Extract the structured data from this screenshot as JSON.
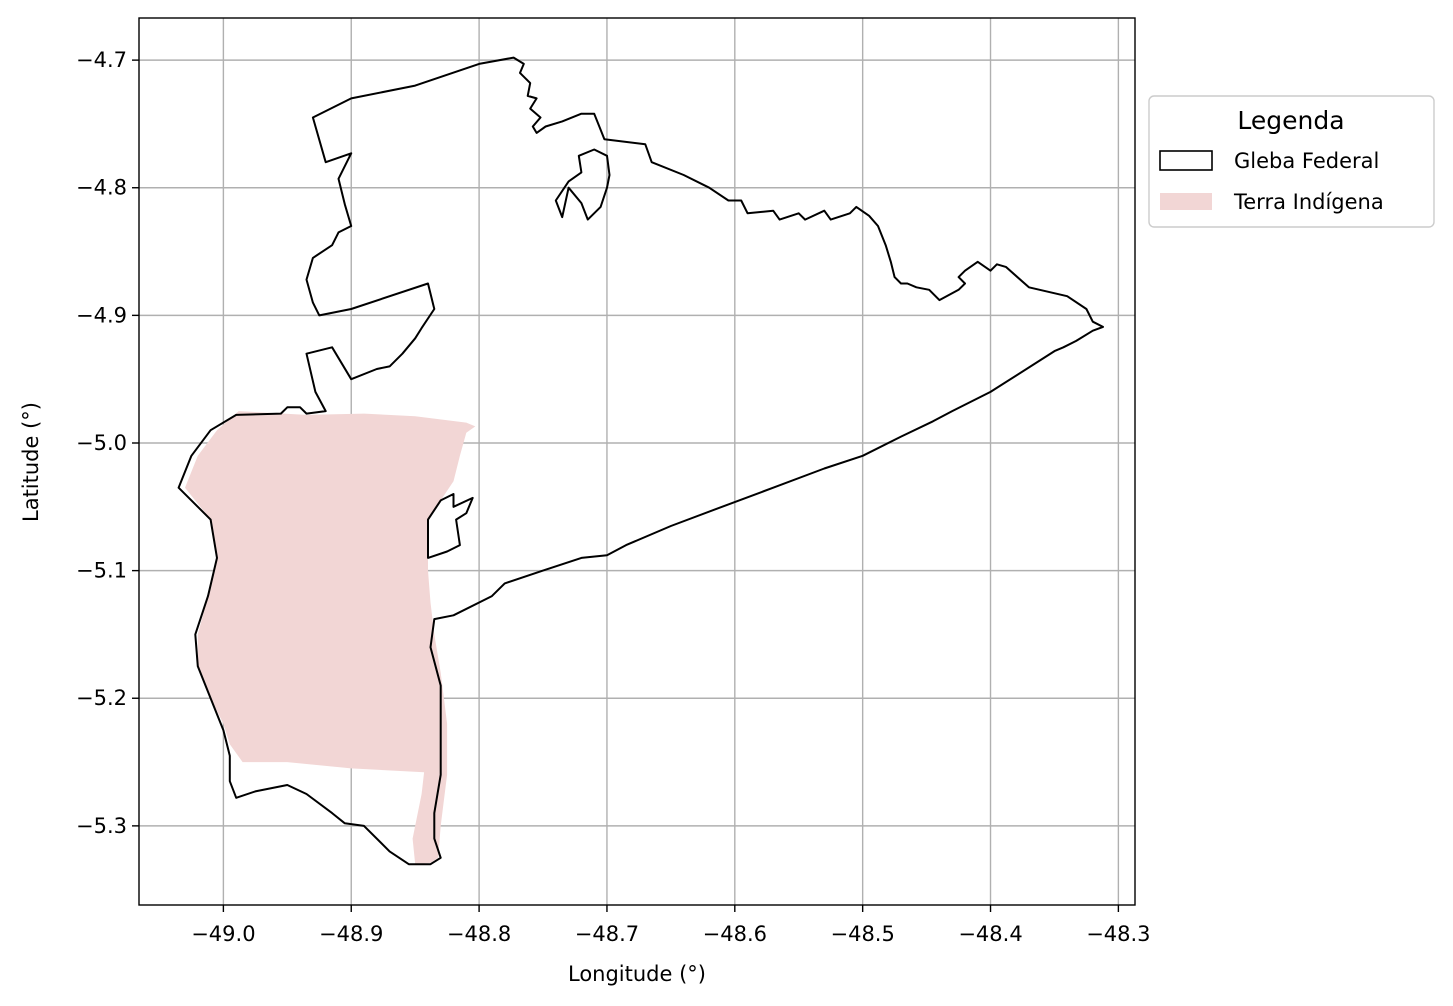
{
  "chart_data": {
    "type": "map",
    "xlabel": "Longitude (°)",
    "ylabel": "Latitude (°)",
    "xlim": [
      -49.066,
      -48.287
    ],
    "ylim": [
      -5.362,
      -4.667
    ],
    "xticks": [
      -49.0,
      -48.9,
      -48.8,
      -48.7,
      -48.6,
      -48.5,
      -48.4,
      -48.3
    ],
    "xtick_labels": [
      "−49.0",
      "−48.9",
      "−48.8",
      "−48.7",
      "−48.6",
      "−48.5",
      "−48.4",
      "−48.3"
    ],
    "yticks": [
      -4.7,
      -4.8,
      -4.9,
      -5.0,
      -5.1,
      -5.2,
      -5.3
    ],
    "ytick_labels": [
      "−4.7",
      "−4.8",
      "−4.9",
      "−5.0",
      "−5.1",
      "−5.2",
      "−5.3"
    ],
    "grid": true,
    "legend": {
      "title": "Legenda",
      "placement": "outside-right-top",
      "entries": [
        {
          "label": "Gleba Federal",
          "style": "outline",
          "color": "#000000"
        },
        {
          "label": "Terra Indígena",
          "style": "fill",
          "color": "#f2d6d5"
        }
      ]
    },
    "layers": [
      {
        "name": "Terra Indígena",
        "kind": "fill",
        "color": "#f2d6d5",
        "polygons": [
          [
            [
              -48.988,
              -4.975
            ],
            [
              -48.935,
              -4.978
            ],
            [
              -48.89,
              -4.977
            ],
            [
              -48.85,
              -4.979
            ],
            [
              -48.81,
              -4.984
            ],
            [
              -48.803,
              -4.987
            ],
            [
              -48.81,
              -4.992
            ],
            [
              -48.815,
              -5.01
            ],
            [
              -48.82,
              -5.03
            ],
            [
              -48.83,
              -5.045
            ],
            [
              -48.84,
              -5.06
            ],
            [
              -48.84,
              -5.08
            ],
            [
              -48.84,
              -5.1
            ],
            [
              -48.838,
              -5.125
            ],
            [
              -48.835,
              -5.15
            ],
            [
              -48.83,
              -5.18
            ],
            [
              -48.825,
              -5.22
            ],
            [
              -48.825,
              -5.26
            ],
            [
              -48.83,
              -5.3
            ],
            [
              -48.832,
              -5.325
            ],
            [
              -48.838,
              -5.329
            ],
            [
              -48.85,
              -5.33
            ],
            [
              -48.852,
              -5.31
            ],
            [
              -48.845,
              -5.275
            ],
            [
              -48.843,
              -5.258
            ],
            [
              -48.9,
              -5.255
            ],
            [
              -48.95,
              -5.25
            ],
            [
              -48.985,
              -5.25
            ],
            [
              -48.995,
              -5.236
            ],
            [
              -49.0,
              -5.22
            ],
            [
              -49.01,
              -5.2
            ],
            [
              -49.02,
              -5.175
            ],
            [
              -49.02,
              -5.15
            ],
            [
              -49.012,
              -5.12
            ],
            [
              -49.005,
              -5.09
            ],
            [
              -49.01,
              -5.06
            ],
            [
              -49.03,
              -5.035
            ],
            [
              -49.02,
              -5.01
            ],
            [
              -49.005,
              -4.99
            ]
          ]
        ]
      },
      {
        "name": "Gleba Federal",
        "kind": "outline",
        "color": "#000000",
        "polygons": [
          [
            [
              -48.773,
              -4.698
            ],
            [
              -48.765,
              -4.703
            ],
            [
              -48.768,
              -4.71
            ],
            [
              -48.76,
              -4.718
            ],
            [
              -48.762,
              -4.728
            ],
            [
              -48.755,
              -4.73
            ],
            [
              -48.76,
              -4.738
            ],
            [
              -48.752,
              -4.745
            ],
            [
              -48.758,
              -4.752
            ],
            [
              -48.755,
              -4.757
            ],
            [
              -48.748,
              -4.752
            ],
            [
              -48.735,
              -4.748
            ],
            [
              -48.72,
              -4.742
            ],
            [
              -48.71,
              -4.742
            ],
            [
              -48.702,
              -4.762
            ],
            [
              -48.67,
              -4.766
            ],
            [
              -48.665,
              -4.78
            ],
            [
              -48.64,
              -4.79
            ],
            [
              -48.62,
              -4.8
            ],
            [
              -48.605,
              -4.81
            ],
            [
              -48.595,
              -4.81
            ],
            [
              -48.59,
              -4.82
            ],
            [
              -48.57,
              -4.818
            ],
            [
              -48.565,
              -4.825
            ],
            [
              -48.55,
              -4.82
            ],
            [
              -48.545,
              -4.825
            ],
            [
              -48.53,
              -4.818
            ],
            [
              -48.525,
              -4.825
            ],
            [
              -48.51,
              -4.82
            ],
            [
              -48.505,
              -4.815
            ],
            [
              -48.495,
              -4.822
            ],
            [
              -48.488,
              -4.83
            ],
            [
              -48.482,
              -4.845
            ],
            [
              -48.478,
              -4.858
            ],
            [
              -48.475,
              -4.87
            ],
            [
              -48.47,
              -4.875
            ],
            [
              -48.465,
              -4.875
            ],
            [
              -48.458,
              -4.878
            ],
            [
              -48.448,
              -4.88
            ],
            [
              -48.44,
              -4.888
            ],
            [
              -48.425,
              -4.88
            ],
            [
              -48.42,
              -4.875
            ],
            [
              -48.425,
              -4.87
            ],
            [
              -48.42,
              -4.865
            ],
            [
              -48.41,
              -4.858
            ],
            [
              -48.4,
              -4.865
            ],
            [
              -48.395,
              -4.86
            ],
            [
              -48.388,
              -4.862
            ],
            [
              -48.37,
              -4.878
            ],
            [
              -48.34,
              -4.885
            ],
            [
              -48.325,
              -4.895
            ],
            [
              -48.32,
              -4.905
            ],
            [
              -48.312,
              -4.909
            ],
            [
              -48.32,
              -4.912
            ],
            [
              -48.333,
              -4.92
            ],
            [
              -48.343,
              -4.925
            ],
            [
              -48.35,
              -4.928
            ],
            [
              -48.4,
              -4.96
            ],
            [
              -48.43,
              -4.975
            ],
            [
              -48.445,
              -4.983
            ],
            [
              -48.47,
              -4.995
            ],
            [
              -48.5,
              -5.01
            ],
            [
              -48.53,
              -5.02
            ],
            [
              -48.57,
              -5.035
            ],
            [
              -48.61,
              -5.05
            ],
            [
              -48.65,
              -5.065
            ],
            [
              -48.685,
              -5.08
            ],
            [
              -48.7,
              -5.088
            ],
            [
              -48.72,
              -5.09
            ],
            [
              -48.75,
              -5.1
            ],
            [
              -48.78,
              -5.11
            ],
            [
              -48.79,
              -5.12
            ],
            [
              -48.82,
              -5.135
            ],
            [
              -48.835,
              -5.138
            ],
            [
              -48.838,
              -5.16
            ],
            [
              -48.83,
              -5.19
            ],
            [
              -48.83,
              -5.22
            ],
            [
              -48.83,
              -5.26
            ],
            [
              -48.835,
              -5.29
            ],
            [
              -48.835,
              -5.31
            ],
            [
              -48.83,
              -5.325
            ],
            [
              -48.838,
              -5.33
            ],
            [
              -48.855,
              -5.33
            ],
            [
              -48.87,
              -5.32
            ],
            [
              -48.89,
              -5.3
            ],
            [
              -48.905,
              -5.298
            ],
            [
              -48.915,
              -5.29
            ],
            [
              -48.935,
              -5.275
            ],
            [
              -48.95,
              -5.268
            ],
            [
              -48.975,
              -5.273
            ],
            [
              -48.99,
              -5.278
            ],
            [
              -48.995,
              -5.265
            ],
            [
              -48.995,
              -5.245
            ],
            [
              -49.0,
              -5.225
            ],
            [
              -49.01,
              -5.2
            ],
            [
              -49.02,
              -5.175
            ],
            [
              -49.022,
              -5.15
            ],
            [
              -49.012,
              -5.12
            ],
            [
              -49.005,
              -5.09
            ],
            [
              -49.01,
              -5.06
            ],
            [
              -49.025,
              -5.045
            ],
            [
              -49.035,
              -5.035
            ],
            [
              -49.025,
              -5.01
            ],
            [
              -49.01,
              -4.99
            ],
            [
              -48.99,
              -4.978
            ],
            [
              -48.955,
              -4.977
            ],
            [
              -48.95,
              -4.972
            ],
            [
              -48.94,
              -4.972
            ],
            [
              -48.935,
              -4.977
            ],
            [
              -48.92,
              -4.975
            ],
            [
              -48.928,
              -4.96
            ],
            [
              -48.935,
              -4.93
            ],
            [
              -48.915,
              -4.925
            ],
            [
              -48.9,
              -4.95
            ],
            [
              -48.88,
              -4.942
            ],
            [
              -48.87,
              -4.94
            ],
            [
              -48.86,
              -4.93
            ],
            [
              -48.85,
              -4.918
            ],
            [
              -48.845,
              -4.91
            ],
            [
              -48.835,
              -4.895
            ],
            [
              -48.84,
              -4.875
            ],
            [
              -48.9,
              -4.895
            ],
            [
              -48.925,
              -4.9
            ],
            [
              -48.93,
              -4.89
            ],
            [
              -48.935,
              -4.872
            ],
            [
              -48.93,
              -4.855
            ],
            [
              -48.915,
              -4.845
            ],
            [
              -48.91,
              -4.835
            ],
            [
              -48.9,
              -4.83
            ],
            [
              -48.905,
              -4.813
            ],
            [
              -48.91,
              -4.793
            ],
            [
              -48.9,
              -4.773
            ],
            [
              -48.92,
              -4.78
            ],
            [
              -48.93,
              -4.745
            ],
            [
              -48.9,
              -4.73
            ],
            [
              -48.85,
              -4.72
            ],
            [
              -48.8,
              -4.703
            ]
          ],
          [
            [
              -48.74,
              -4.81
            ],
            [
              -48.73,
              -4.795
            ],
            [
              -48.72,
              -4.788
            ],
            [
              -48.722,
              -4.775
            ],
            [
              -48.71,
              -4.77
            ],
            [
              -48.7,
              -4.775
            ],
            [
              -48.698,
              -4.79
            ],
            [
              -48.7,
              -4.8
            ],
            [
              -48.705,
              -4.815
            ],
            [
              -48.715,
              -4.825
            ],
            [
              -48.72,
              -4.812
            ],
            [
              -48.73,
              -4.8
            ],
            [
              -48.735,
              -4.823
            ]
          ],
          [
            [
              -48.84,
              -5.09
            ],
            [
              -48.825,
              -5.085
            ],
            [
              -48.815,
              -5.08
            ],
            [
              -48.818,
              -5.06
            ],
            [
              -48.81,
              -5.055
            ],
            [
              -48.805,
              -5.043
            ],
            [
              -48.82,
              -5.05
            ],
            [
              -48.82,
              -5.04
            ],
            [
              -48.83,
              -5.045
            ],
            [
              -48.84,
              -5.06
            ]
          ]
        ]
      }
    ]
  }
}
